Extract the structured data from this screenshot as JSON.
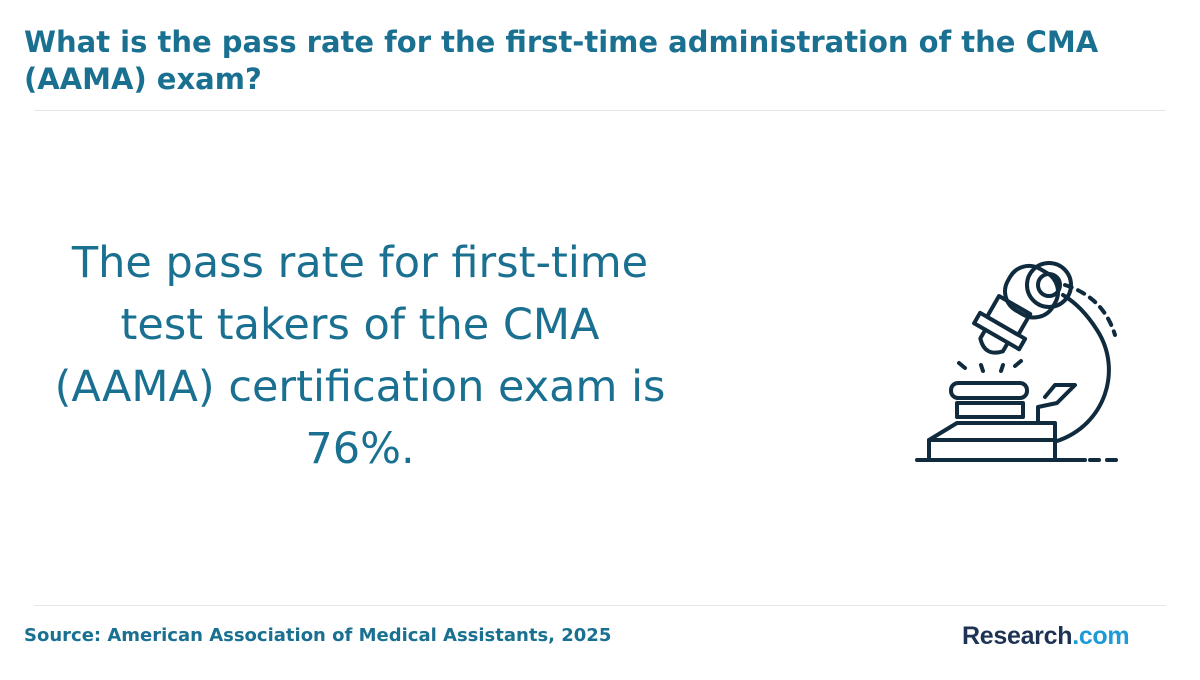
{
  "header": {
    "title": "What is the pass rate for the first-time administration of the CMA (AAMA) exam?"
  },
  "main": {
    "statement": "The pass rate for first-time test takers of the CMA (AAMA) certification exam is 76%.",
    "illustration_icon": "microscope-icon"
  },
  "footer": {
    "source": "Source: American Association of Medical Assistants, 2025",
    "logo_brand": "Research",
    "logo_tld": ".com"
  },
  "colors": {
    "accent": "#1a7091",
    "icon_stroke": "#0f2b3d",
    "logo_dark": "#1e3354",
    "logo_light": "#1e9ad6",
    "divider": "#e4e7ea"
  }
}
